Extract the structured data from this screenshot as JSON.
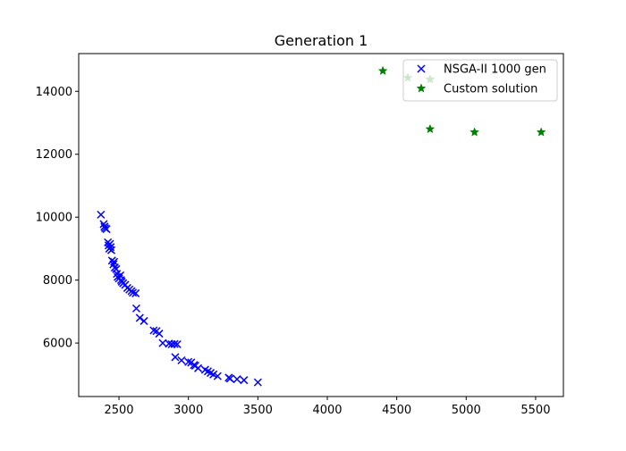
{
  "chart_data": {
    "type": "scatter",
    "title": "Generation 1",
    "xlabel": "",
    "ylabel": "",
    "xlim": [
      2210,
      5700
    ],
    "ylim": [
      4300,
      15200
    ],
    "xticks": [
      2500,
      3000,
      3500,
      4000,
      4500,
      5000,
      5500
    ],
    "yticks": [
      6000,
      8000,
      10000,
      12000,
      14000
    ],
    "xtick_labels": [
      "2500",
      "3000",
      "3500",
      "4000",
      "4500",
      "5000",
      "5500"
    ],
    "ytick_labels": [
      "6000",
      "8000",
      "10000",
      "12000",
      "14000"
    ],
    "grid": false,
    "legend_position": "top-right",
    "series": [
      {
        "name": "NSGA-II 1000 gen",
        "marker": "x",
        "color": "#0000ff",
        "points": [
          [
            2370,
            10080
          ],
          [
            2390,
            9780
          ],
          [
            2395,
            9700
          ],
          [
            2400,
            9650
          ],
          [
            2410,
            9620
          ],
          [
            2420,
            9200
          ],
          [
            2425,
            9100
          ],
          [
            2430,
            9000
          ],
          [
            2435,
            9150
          ],
          [
            2440,
            9050
          ],
          [
            2445,
            8950
          ],
          [
            2450,
            8620
          ],
          [
            2460,
            8500
          ],
          [
            2465,
            8580
          ],
          [
            2470,
            8400
          ],
          [
            2480,
            8350
          ],
          [
            2485,
            8200
          ],
          [
            2490,
            8100
          ],
          [
            2500,
            8050
          ],
          [
            2510,
            8150
          ],
          [
            2515,
            8000
          ],
          [
            2520,
            7950
          ],
          [
            2530,
            7900
          ],
          [
            2545,
            7850
          ],
          [
            2560,
            7750
          ],
          [
            2575,
            7700
          ],
          [
            2590,
            7650
          ],
          [
            2600,
            7600
          ],
          [
            2620,
            7580
          ],
          [
            2625,
            7100
          ],
          [
            2650,
            6800
          ],
          [
            2680,
            6700
          ],
          [
            2750,
            6400
          ],
          [
            2770,
            6380
          ],
          [
            2790,
            6300
          ],
          [
            2815,
            6000
          ],
          [
            2860,
            5980
          ],
          [
            2880,
            5960
          ],
          [
            2900,
            5970
          ],
          [
            2920,
            5960
          ],
          [
            2905,
            5550
          ],
          [
            2950,
            5450
          ],
          [
            3000,
            5400
          ],
          [
            3020,
            5380
          ],
          [
            3040,
            5300
          ],
          [
            3050,
            5280
          ],
          [
            3070,
            5200
          ],
          [
            3120,
            5150
          ],
          [
            3140,
            5100
          ],
          [
            3160,
            5050
          ],
          [
            3180,
            5000
          ],
          [
            3210,
            4950
          ],
          [
            3290,
            4900
          ],
          [
            3300,
            4870
          ],
          [
            3350,
            4850
          ],
          [
            3400,
            4820
          ],
          [
            3500,
            4750
          ]
        ]
      },
      {
        "name": "Custom solution",
        "marker": "*",
        "color": "#008000",
        "points": [
          [
            4400,
            14650
          ],
          [
            4580,
            14430
          ],
          [
            4740,
            14380
          ],
          [
            4740,
            12800
          ],
          [
            5060,
            12700
          ],
          [
            5540,
            12700
          ]
        ]
      }
    ]
  }
}
